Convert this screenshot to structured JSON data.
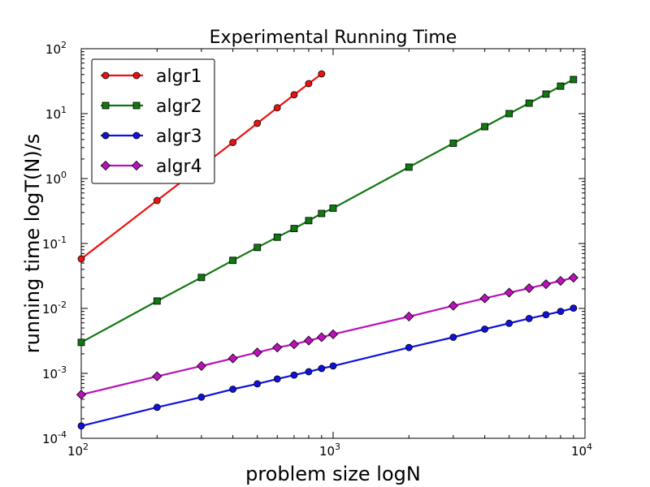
{
  "chart_data": {
    "type": "line",
    "title": "Experimental Running Time",
    "xlabel": "problem size logN",
    "ylabel": "running time logT(N)/s",
    "xscale": "log",
    "yscale": "log",
    "xlim": [
      100,
      10000
    ],
    "ylim": [
      0.0001,
      100
    ],
    "x_ticks": [
      {
        "value": 100,
        "base": "10",
        "exp": "2"
      },
      {
        "value": 1000,
        "base": "10",
        "exp": "3"
      },
      {
        "value": 10000,
        "base": "10",
        "exp": "4"
      }
    ],
    "y_ticks": [
      {
        "value": 0.0001,
        "base": "10",
        "exp": "-4"
      },
      {
        "value": 0.001,
        "base": "10",
        "exp": "-3"
      },
      {
        "value": 0.01,
        "base": "10",
        "exp": "-2"
      },
      {
        "value": 0.1,
        "base": "10",
        "exp": "-1"
      },
      {
        "value": 1,
        "base": "10",
        "exp": "0"
      },
      {
        "value": 10,
        "base": "10",
        "exp": "1"
      },
      {
        "value": 100,
        "base": "10",
        "exp": "2"
      }
    ],
    "grid": false,
    "legend_position": "top-left",
    "series": [
      {
        "name": "algr1",
        "color": "#ee1111",
        "marker": "circle",
        "x": [
          100,
          200,
          400,
          500,
          600,
          700,
          800,
          900
        ],
        "y": [
          0.058,
          0.46,
          3.6,
          7.1,
          12.3,
          19.5,
          29,
          41
        ]
      },
      {
        "name": "algr2",
        "color": "#117711",
        "marker": "square",
        "x": [
          100,
          200,
          300,
          400,
          500,
          600,
          700,
          800,
          900,
          1000,
          2000,
          3000,
          4000,
          5000,
          6000,
          7000,
          8000,
          9000
        ],
        "y": [
          0.003,
          0.013,
          0.03,
          0.055,
          0.087,
          0.125,
          0.17,
          0.225,
          0.29,
          0.35,
          1.5,
          3.5,
          6.3,
          10,
          14.5,
          20,
          26.5,
          33.5
        ]
      },
      {
        "name": "algr3",
        "color": "#1111dd",
        "marker": "circle",
        "x": [
          100,
          200,
          300,
          400,
          500,
          600,
          700,
          800,
          900,
          1000,
          2000,
          3000,
          4000,
          5000,
          6000,
          7000,
          8000,
          9000
        ],
        "y": [
          0.000155,
          0.0003,
          0.00043,
          0.00057,
          0.00069,
          0.00082,
          0.00094,
          0.00106,
          0.00119,
          0.0013,
          0.0025,
          0.0036,
          0.0048,
          0.0059,
          0.007,
          0.008,
          0.009,
          0.0101
        ]
      },
      {
        "name": "algr4",
        "color": "#bb11bb",
        "marker": "diamond",
        "x": [
          100,
          200,
          300,
          400,
          500,
          600,
          700,
          800,
          900,
          1000,
          2000,
          3000,
          4000,
          5000,
          6000,
          7000,
          8000,
          9000
        ],
        "y": [
          0.00047,
          0.0009,
          0.0013,
          0.0017,
          0.0021,
          0.0025,
          0.0028,
          0.0032,
          0.0036,
          0.004,
          0.0075,
          0.011,
          0.0143,
          0.0175,
          0.0205,
          0.0236,
          0.0266,
          0.0297
        ]
      }
    ]
  }
}
